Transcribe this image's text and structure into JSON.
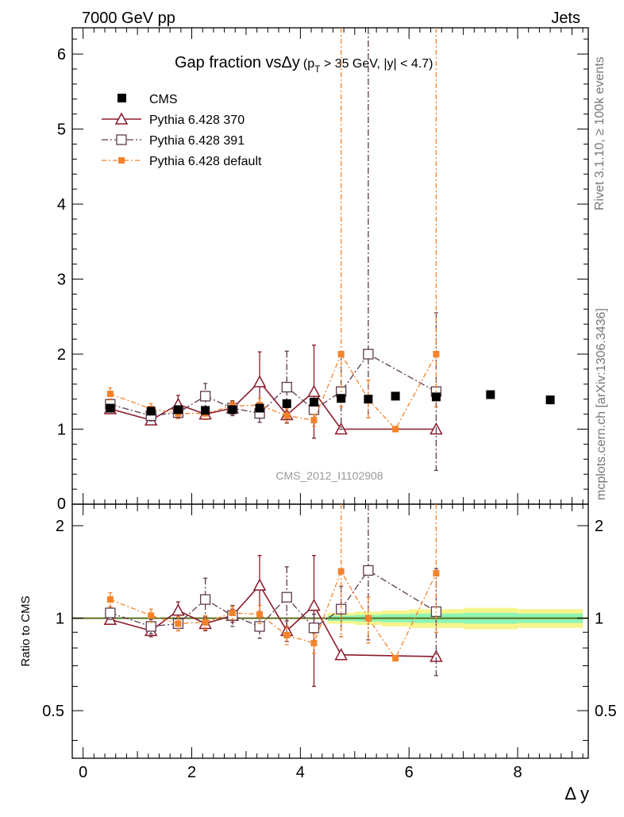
{
  "header": {
    "energy_label": "7000 GeV pp",
    "category_label": "Jets"
  },
  "side_labels": {
    "rivet": "Rivet 3.1.10, ≥ 100k events",
    "mcplots": "mcplots.cern.ch [arXiv:1306.3436]"
  },
  "watermark": "CMS_2012_I1102908",
  "colors": {
    "cms": "#000000",
    "pythia370": "#8b1a2b",
    "pythia391": "#5c3a4e",
    "pythia_default": "#f5822a",
    "band_yellow": "#f5f58c",
    "band_green": "#8cf5b4",
    "ratio_line": "#5a6e1e"
  },
  "chart_data": [
    {
      "type": "scatter",
      "title": "Gap fraction vs",
      "title_symbol": "Δy",
      "title_cut_open": "(p",
      "title_cut_sub": "T",
      "title_cut_rest": " > 35 GeV, |y| < 4.7)",
      "xlim": [
        -0.2,
        9.3
      ],
      "ylim": [
        0,
        6.35
      ],
      "y_ticks": [
        1,
        2,
        3,
        4,
        5,
        6
      ],
      "y_tick_zero": "0",
      "legend_placement": "top-left",
      "series": [
        {
          "key": "cms",
          "name": "CMS",
          "marker": "filled-square",
          "x": [
            0.5,
            1.25,
            1.75,
            2.25,
            2.75,
            3.25,
            3.75,
            4.25,
            4.75,
            5.25,
            5.75,
            6.5,
            7.5,
            8.6
          ],
          "y": [
            1.28,
            1.24,
            1.26,
            1.25,
            1.26,
            1.28,
            1.34,
            1.36,
            1.41,
            1.4,
            1.44,
            1.43,
            1.46,
            1.39
          ]
        },
        {
          "key": "pythia370",
          "name": "Pythia 6.428 370",
          "marker": "open-triangle",
          "dash": "",
          "x": [
            0.5,
            1.25,
            1.75,
            2.25,
            2.75,
            3.25,
            3.75,
            4.25,
            4.75,
            6.5
          ],
          "y": [
            1.27,
            1.12,
            1.33,
            1.2,
            1.28,
            1.63,
            1.19,
            1.5,
            1.0,
            1.0
          ],
          "err": [
            0.04,
            0.05,
            0.12,
            0.07,
            0.08,
            0.4,
            0.1,
            0.62,
            0,
            0
          ]
        },
        {
          "key": "pythia391",
          "name": "Pythia 6.428 391",
          "marker": "open-square",
          "dash": "8,3,2,3",
          "x": [
            0.5,
            1.25,
            1.75,
            2.25,
            2.75,
            3.25,
            3.75,
            4.25,
            4.75,
            5.25,
            6.5
          ],
          "y": [
            1.33,
            1.18,
            1.22,
            1.44,
            1.28,
            1.21,
            1.56,
            1.26,
            1.5,
            2.0,
            1.5
          ],
          "err": [
            0.07,
            0.07,
            0.07,
            0.17,
            0.1,
            0.12,
            0.48,
            0.12,
            0.5,
            0.85,
            1.05
          ],
          "err_up_clip": [
            false,
            false,
            false,
            false,
            false,
            false,
            false,
            false,
            false,
            true,
            false
          ]
        },
        {
          "key": "pythia_default",
          "name": "Pythia 6.428 default",
          "marker": "filled-small-square",
          "dash": "6,3,2,3",
          "x": [
            0.5,
            1.25,
            1.75,
            2.25,
            2.75,
            3.25,
            3.75,
            4.25,
            4.75,
            5.25,
            5.75,
            6.5
          ],
          "y": [
            1.47,
            1.27,
            1.21,
            1.21,
            1.31,
            1.32,
            1.18,
            1.12,
            2.0,
            1.4,
            1.0,
            2.0
          ],
          "err": [
            0.08,
            0.07,
            0.07,
            0.07,
            0.06,
            0.09,
            0.09,
            0.08,
            0.7,
            0.25,
            0,
            0.7
          ],
          "err_up_clip": [
            false,
            false,
            false,
            false,
            false,
            false,
            false,
            false,
            true,
            false,
            false,
            true
          ]
        }
      ]
    },
    {
      "type": "scatter",
      "xlabel": "Δ y",
      "ylabel": "Ratio to CMS",
      "xlim": [
        -0.2,
        9.3
      ],
      "x_ticks": [
        0,
        2,
        4,
        6,
        8
      ],
      "ylim": [
        0.35,
        2.35
      ],
      "y_scale": "log",
      "y_ticks": [
        0.5,
        1,
        2
      ],
      "reference_line": 1.0,
      "band": {
        "x_edges": [
          4.5,
          5.0,
          5.5,
          6.0,
          7.0,
          8.0,
          9.2
        ],
        "inner_half_width": [
          0.02,
          0.025,
          0.03,
          0.035,
          0.04,
          0.035
        ],
        "outer_half_width": [
          0.04,
          0.05,
          0.06,
          0.07,
          0.08,
          0.07
        ]
      },
      "series": [
        {
          "key": "pythia370",
          "x": [
            0.5,
            1.25,
            1.75,
            2.25,
            2.75,
            3.25,
            3.75,
            4.25,
            4.75,
            6.5
          ],
          "y": [
            0.99,
            0.91,
            1.06,
            0.96,
            1.02,
            1.28,
            0.91,
            1.1,
            0.76,
            0.75
          ],
          "err": [
            0.03,
            0.04,
            0.07,
            0.05,
            0.05,
            0.32,
            0.07,
            0.5,
            0,
            0
          ]
        },
        {
          "key": "pythia391",
          "x": [
            0.5,
            1.25,
            1.75,
            2.25,
            2.75,
            3.25,
            3.75,
            4.25,
            4.75,
            5.25,
            6.5
          ],
          "y": [
            1.04,
            0.94,
            0.96,
            1.15,
            1.02,
            0.94,
            1.17,
            0.93,
            1.07,
            1.43,
            1.05
          ],
          "err": [
            0.05,
            0.05,
            0.05,
            0.2,
            0.08,
            0.08,
            0.3,
            0.1,
            0.2,
            0.58,
            0.4
          ],
          "err_up_clip": [
            false,
            false,
            false,
            false,
            false,
            false,
            false,
            false,
            false,
            true,
            false
          ]
        },
        {
          "key": "pythia_default",
          "x": [
            0.5,
            1.25,
            1.75,
            2.25,
            2.75,
            3.25,
            3.75,
            4.25,
            4.75,
            5.25,
            5.75,
            6.5
          ],
          "y": [
            1.15,
            1.02,
            0.96,
            0.97,
            1.04,
            1.03,
            0.88,
            0.83,
            1.42,
            1.0,
            0.74,
            1.4
          ],
          "err": [
            0.06,
            0.05,
            0.05,
            0.05,
            0.05,
            0.07,
            0.06,
            0.06,
            0.55,
            0.17,
            0,
            0.5
          ],
          "err_up_clip": [
            false,
            false,
            false,
            false,
            false,
            false,
            false,
            false,
            true,
            false,
            false,
            true
          ]
        }
      ]
    }
  ]
}
